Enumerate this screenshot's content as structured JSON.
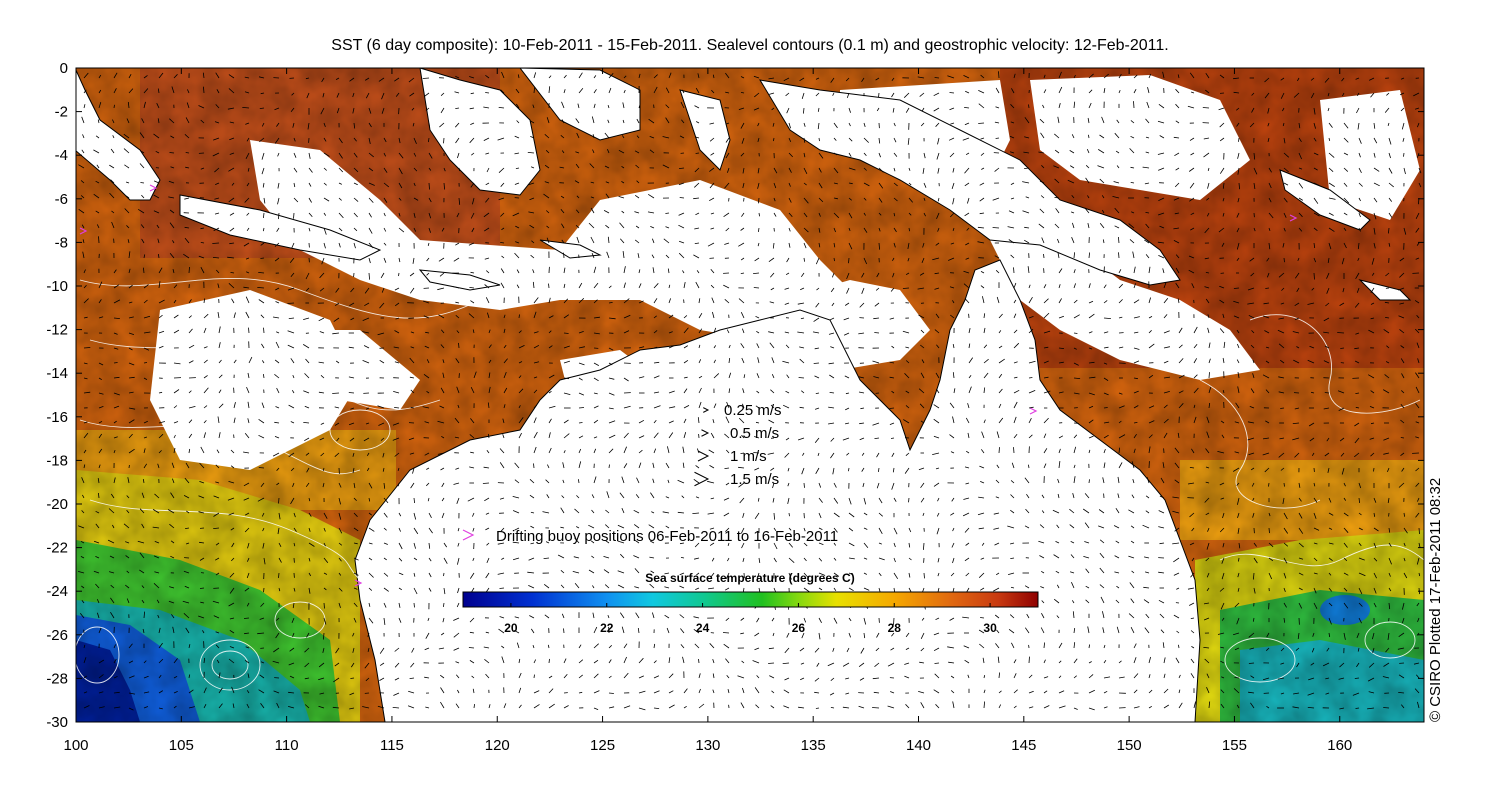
{
  "title": "SST (6 day composite): 10-Feb-2011 - 15-Feb-2011. Sealevel contours (0.1 m) and geostrophic velocity: 12-Feb-2011.",
  "credit": "© CSIRO Plotted 17-Feb-2011 08:32",
  "axes": {
    "x_ticks": [
      100,
      105,
      110,
      115,
      120,
      125,
      130,
      135,
      140,
      145,
      150,
      155,
      160
    ],
    "y_ticks": [
      0,
      -2,
      -4,
      -6,
      -8,
      -10,
      -12,
      -14,
      -16,
      -18,
      -20,
      -22,
      -24,
      -26,
      -28,
      -30
    ],
    "x_range": [
      100,
      164
    ],
    "y_range": [
      -30,
      0
    ]
  },
  "velocity_legend": [
    {
      "label": "0.25 m/s",
      "speed": 0.25
    },
    {
      "label": "0.5 m/s",
      "speed": 0.5
    },
    {
      "label": "1 m/s",
      "speed": 1
    },
    {
      "label": "1.5 m/s",
      "speed": 1.5
    }
  ],
  "buoy_legend": {
    "label": "Drifting buoy positions 06-Feb-2011 to 16-Feb-2011",
    "color": "#e040e0"
  },
  "colorbar": {
    "title": "Sea surface temperature (degrees C)",
    "range": [
      19,
      31
    ],
    "ticks": [
      20,
      22,
      24,
      26,
      28,
      30
    ]
  },
  "colors": {
    "land": "#ffffff",
    "coast": "#000000",
    "contour": "#ffffff",
    "cloud": "#ffffff"
  }
}
